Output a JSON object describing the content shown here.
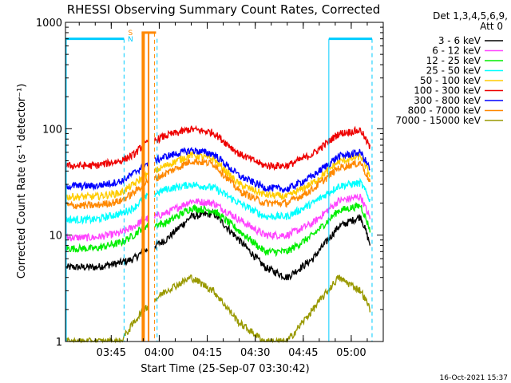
{
  "chart_data": {
    "type": "line",
    "title": "RHESSI Observing Summary Count Rates, Corrected",
    "xlabel": "Start Time (25-Sep-07 03:30:42)",
    "ylabel": "Corrected Count Rate (s⁻¹ detector⁻¹)",
    "y_scale": "log",
    "ylim": [
      1,
      1000
    ],
    "xlim": [
      "03:30:42",
      "05:10:00"
    ],
    "x_ticks": [
      "03:45",
      "04:00",
      "04:15",
      "04:30",
      "04:45",
      "05:00"
    ],
    "y_tick_labels": [
      "1",
      "10",
      "100",
      "1000"
    ],
    "legend": {
      "position": "top-right",
      "header": [
        "Det 1,3,4,5,6,9,",
        "Att 0"
      ]
    },
    "series": [
      {
        "name": "3 - 6 keV",
        "color": "#000000",
        "x": [
          "03:31",
          "03:40",
          "03:48",
          "03:52",
          "03:55",
          "04:02",
          "04:10",
          "04:17",
          "04:25",
          "04:33",
          "04:40",
          "04:48",
          "04:56",
          "05:03",
          "05:06"
        ],
        "y": [
          5,
          5,
          5.5,
          6,
          7,
          9,
          15,
          16,
          9,
          5,
          4,
          6,
          12,
          15,
          8
        ]
      },
      {
        "name": "6 - 12 keV",
        "color": "#ff44ff",
        "x": [
          "03:31",
          "03:40",
          "03:48",
          "03:52",
          "03:55",
          "04:02",
          "04:10",
          "04:17",
          "04:25",
          "04:33",
          "04:40",
          "04:48",
          "04:56",
          "05:03",
          "05:06"
        ],
        "y": [
          9.5,
          9.5,
          10.5,
          12,
          14,
          16,
          21,
          20,
          14,
          10,
          10,
          13,
          21,
          23,
          14
        ]
      },
      {
        "name": "12 - 25 keV",
        "color": "#00ee00",
        "x": [
          "03:31",
          "03:40",
          "03:48",
          "03:52",
          "03:55",
          "04:02",
          "04:10",
          "04:17",
          "04:25",
          "04:33",
          "04:40",
          "04:48",
          "04:56",
          "05:03",
          "05:06"
        ],
        "y": [
          7.5,
          7.5,
          8.5,
          10,
          12,
          13,
          18,
          17,
          11,
          7,
          7,
          10,
          17,
          19,
          11
        ]
      },
      {
        "name": "25 - 50 keV",
        "color": "#00ffff",
        "x": [
          "03:31",
          "03:40",
          "03:48",
          "03:52",
          "03:55",
          "04:02",
          "04:10",
          "04:17",
          "04:25",
          "04:33",
          "04:40",
          "04:48",
          "04:56",
          "05:03",
          "05:06"
        ],
        "y": [
          14,
          14,
          16,
          18,
          22,
          27,
          30,
          28,
          20,
          15,
          15,
          20,
          29,
          31,
          21
        ]
      },
      {
        "name": "50 - 100 keV",
        "color": "#ffcc00",
        "x": [
          "03:31",
          "03:40",
          "03:48",
          "03:52",
          "03:55",
          "04:02",
          "04:10",
          "04:17",
          "04:25",
          "04:33",
          "04:40",
          "04:48",
          "04:56",
          "05:03",
          "05:06"
        ],
        "y": [
          23,
          23,
          25,
          30,
          35,
          45,
          57,
          52,
          30,
          24,
          23,
          31,
          49,
          55,
          36
        ]
      },
      {
        "name": "100 - 300 keV",
        "color": "#ee0000",
        "x": [
          "03:31",
          "03:40",
          "03:48",
          "03:52",
          "03:55",
          "04:02",
          "04:10",
          "04:17",
          "04:25",
          "04:33",
          "04:40",
          "04:48",
          "04:56",
          "05:03",
          "05:06"
        ],
        "y": [
          45,
          45,
          50,
          57,
          70,
          86,
          99,
          92,
          58,
          45,
          45,
          58,
          90,
          97,
          65
        ]
      },
      {
        "name": "300 - 800 keV",
        "color": "#0000ff",
        "x": [
          "03:31",
          "03:40",
          "03:48",
          "03:52",
          "03:55",
          "04:02",
          "04:10",
          "04:17",
          "04:25",
          "04:33",
          "04:40",
          "04:48",
          "04:56",
          "05:03",
          "05:06"
        ],
        "y": [
          29,
          29,
          32,
          38,
          45,
          55,
          63,
          58,
          36,
          28,
          27,
          36,
          55,
          60,
          41
        ]
      },
      {
        "name": "800 - 7000 keV",
        "color": "#ff8800",
        "x": [
          "03:31",
          "03:40",
          "03:48",
          "03:52",
          "03:55",
          "04:02",
          "04:10",
          "04:17",
          "04:25",
          "04:33",
          "04:40",
          "04:48",
          "04:56",
          "05:03",
          "05:06"
        ],
        "y": [
          19,
          19,
          21,
          25,
          30,
          38,
          50,
          47,
          26,
          20,
          20,
          27,
          43,
          48,
          31
        ]
      },
      {
        "name": "7000 - 15000 keV",
        "color": "#999900",
        "x": [
          "03:31",
          "03:40",
          "03:48",
          "03:52",
          "03:55",
          "04:02",
          "04:10",
          "04:17",
          "04:25",
          "04:33",
          "04:40",
          "04:48",
          "04:56",
          "05:03",
          "05:06"
        ],
        "y": [
          1,
          1,
          1,
          1.5,
          2,
          3,
          4,
          3,
          1.5,
          1,
          1,
          2,
          4,
          3,
          2
        ]
      }
    ],
    "annotations": {
      "flag_letters": [
        "S",
        "N"
      ],
      "flag_colors": [
        "#ff8800",
        "#00ccff"
      ]
    },
    "timestamp": "16-Oct-2021 15:37"
  }
}
